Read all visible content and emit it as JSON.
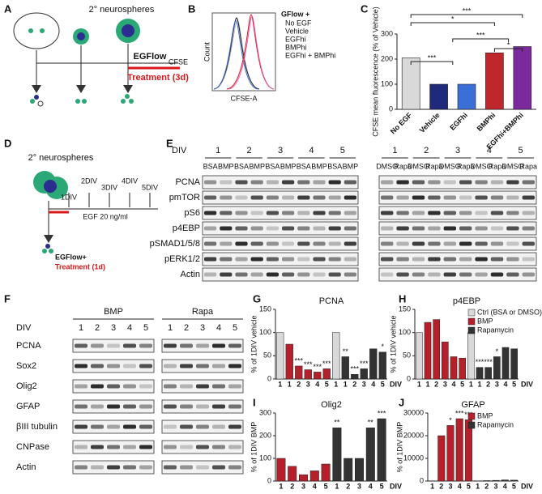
{
  "panel_labels": [
    "A",
    "B",
    "C",
    "D",
    "E",
    "F",
    "G",
    "H",
    "I",
    "J"
  ],
  "panel_a": {
    "title": "2° neurospheres",
    "egf": "EGFlow",
    "cfse": "CFSE",
    "treatment": "Treatment (3d)"
  },
  "panel_b": {
    "legend_title": "GFlow +",
    "legend": [
      "No EGF",
      "Vehicle",
      "EGFhi",
      "BMPhi",
      "EGFhi + BMPhi"
    ],
    "colors": [
      "#bbbbbb",
      "#222222",
      "#3b6fd8",
      "#d7191c",
      "#e45aa8"
    ],
    "y_label": "Count",
    "x_label": "CFSE-A"
  },
  "panel_d": {
    "title": "2° neurospheres",
    "days": [
      "1DIV",
      "2DIV",
      "3DIV",
      "4DIV",
      "5DIV"
    ],
    "egf": "EGF 20 ng/ml",
    "cells": "EGFlow+",
    "treatment": "Treatment (1d)"
  },
  "panel_e": {
    "div_label": "DIV",
    "days": [
      "1",
      "2",
      "3",
      "4",
      "5"
    ],
    "left_lanes": [
      "BSA",
      "BMP"
    ],
    "right_lanes": [
      "DMSO",
      "Rapa"
    ],
    "rows": [
      "PCNA",
      "pmTOR",
      "pS6",
      "p4EBP",
      "pSMAD1/5/8",
      "pERK1/2",
      "Actin"
    ]
  },
  "panel_f": {
    "groups": [
      "BMP",
      "Rapa"
    ],
    "div_label": "DIV",
    "days": [
      "1",
      "2",
      "3",
      "4",
      "5"
    ],
    "rows": [
      "PCNA",
      "Sox2",
      "Olig2",
      "GFAP",
      "βIII tubulin",
      "CNPase",
      "Actin"
    ]
  },
  "chart_data": [
    {
      "type": "bar",
      "y_label": "CFSE mean fluorescence (% of Vehicle)",
      "categories": [
        "No EGF",
        "Vehicle",
        "EGFhi",
        "BMPhi",
        "EGFhi+BMPhi"
      ],
      "values": [
        205,
        100,
        100,
        225,
        250
      ],
      "colors": [
        "#d9d9d9",
        "#1f2a7a",
        "#3b6fd8",
        "#c0272d",
        "#7b2a9e"
      ],
      "ylim": [
        0,
        300
      ],
      "yticks": [
        0,
        100,
        200,
        300
      ],
      "significance": [
        "***",
        "*",
        "***",
        "*",
        "***"
      ]
    },
    {
      "type": "grouped-bar",
      "title": "PCNA",
      "y_label": "% of 1DIV vehicle",
      "x_label": "DIV",
      "categories": [
        "1",
        "1",
        "2",
        "3",
        "4",
        "5",
        "1",
        "1",
        "2",
        "3",
        "4",
        "5"
      ],
      "series": [
        {
          "color": "#d9d9d9",
          "values": [
            100,
            null,
            null,
            null,
            null,
            null,
            100,
            null,
            null,
            null,
            null,
            null
          ]
        },
        {
          "color": "#b5202a",
          "values": [
            null,
            75,
            28,
            20,
            15,
            22,
            null,
            null,
            null,
            null,
            null,
            null
          ]
        },
        {
          "color": "#333333",
          "values": [
            null,
            null,
            null,
            null,
            null,
            null,
            null,
            48,
            10,
            22,
            65,
            58
          ]
        }
      ],
      "stars": [
        null,
        null,
        "***",
        "***",
        "***",
        "***",
        null,
        "**",
        "***",
        "***",
        null,
        "*"
      ],
      "ylim": [
        0,
        150
      ],
      "yticks": [
        0,
        50,
        100,
        150
      ]
    },
    {
      "type": "grouped-bar",
      "title": "p4EBP",
      "y_label": "% of 1DIV vehicle",
      "x_label": "DIV",
      "categories": [
        "1",
        "1",
        "2",
        "3",
        "4",
        "5",
        "1",
        "1",
        "2",
        "3",
        "4",
        "5"
      ],
      "series": [
        {
          "name": "Ctrl (BSA or DMSO)",
          "color": "#d9d9d9",
          "values": [
            100,
            null,
            null,
            null,
            null,
            null,
            100,
            null,
            null,
            null,
            null,
            null
          ]
        },
        {
          "name": "BMP",
          "color": "#b5202a",
          "values": [
            null,
            122,
            128,
            80,
            48,
            45,
            null,
            null,
            null,
            null,
            null,
            null
          ]
        },
        {
          "name": "Rapamycin",
          "color": "#333333",
          "values": [
            null,
            null,
            null,
            null,
            null,
            null,
            null,
            25,
            25,
            48,
            68,
            65
          ]
        }
      ],
      "stars": [
        null,
        null,
        null,
        null,
        null,
        null,
        null,
        "***",
        "***",
        "*",
        null,
        null
      ],
      "ylim": [
        0,
        150
      ],
      "yticks": [
        0,
        50,
        100,
        150
      ]
    },
    {
      "type": "grouped-bar",
      "title": "Olig2",
      "y_label": "% of 1DIV BMP",
      "x_label": "DIV",
      "categories": [
        "1",
        "2",
        "3",
        "4",
        "5",
        "1",
        "2",
        "3",
        "4",
        "5"
      ],
      "series": [
        {
          "color": "#b5202a",
          "values": [
            100,
            65,
            28,
            45,
            75,
            null,
            null,
            null,
            null,
            null
          ]
        },
        {
          "color": "#333333",
          "values": [
            null,
            null,
            null,
            null,
            null,
            235,
            100,
            100,
            235,
            275
          ]
        }
      ],
      "stars": [
        null,
        null,
        null,
        null,
        null,
        "**",
        null,
        null,
        "**",
        "***"
      ],
      "ylim": [
        0,
        300
      ],
      "yticks": [
        0,
        100,
        200,
        300
      ]
    },
    {
      "type": "grouped-bar",
      "title": "GFAP",
      "y_label": "% of 1DIV BMP",
      "x_label": "DIV",
      "categories": [
        "1",
        "2",
        "3",
        "4",
        "5",
        "1",
        "2",
        "3",
        "4",
        "5"
      ],
      "series": [
        {
          "name": "BMP",
          "color": "#b5202a",
          "values": [
            100,
            20000,
            24500,
            27500,
            27000,
            null,
            null,
            null,
            null,
            null
          ]
        },
        {
          "name": "Rapamycin",
          "color": "#333333",
          "values": [
            null,
            null,
            null,
            null,
            null,
            100,
            200,
            300,
            500,
            400
          ]
        }
      ],
      "stars": [
        null,
        null,
        "*",
        "***",
        "***",
        null,
        null,
        null,
        null,
        null
      ],
      "ylim": [
        0,
        30000
      ],
      "yticks": [
        0,
        10000,
        20000,
        30000
      ]
    }
  ]
}
